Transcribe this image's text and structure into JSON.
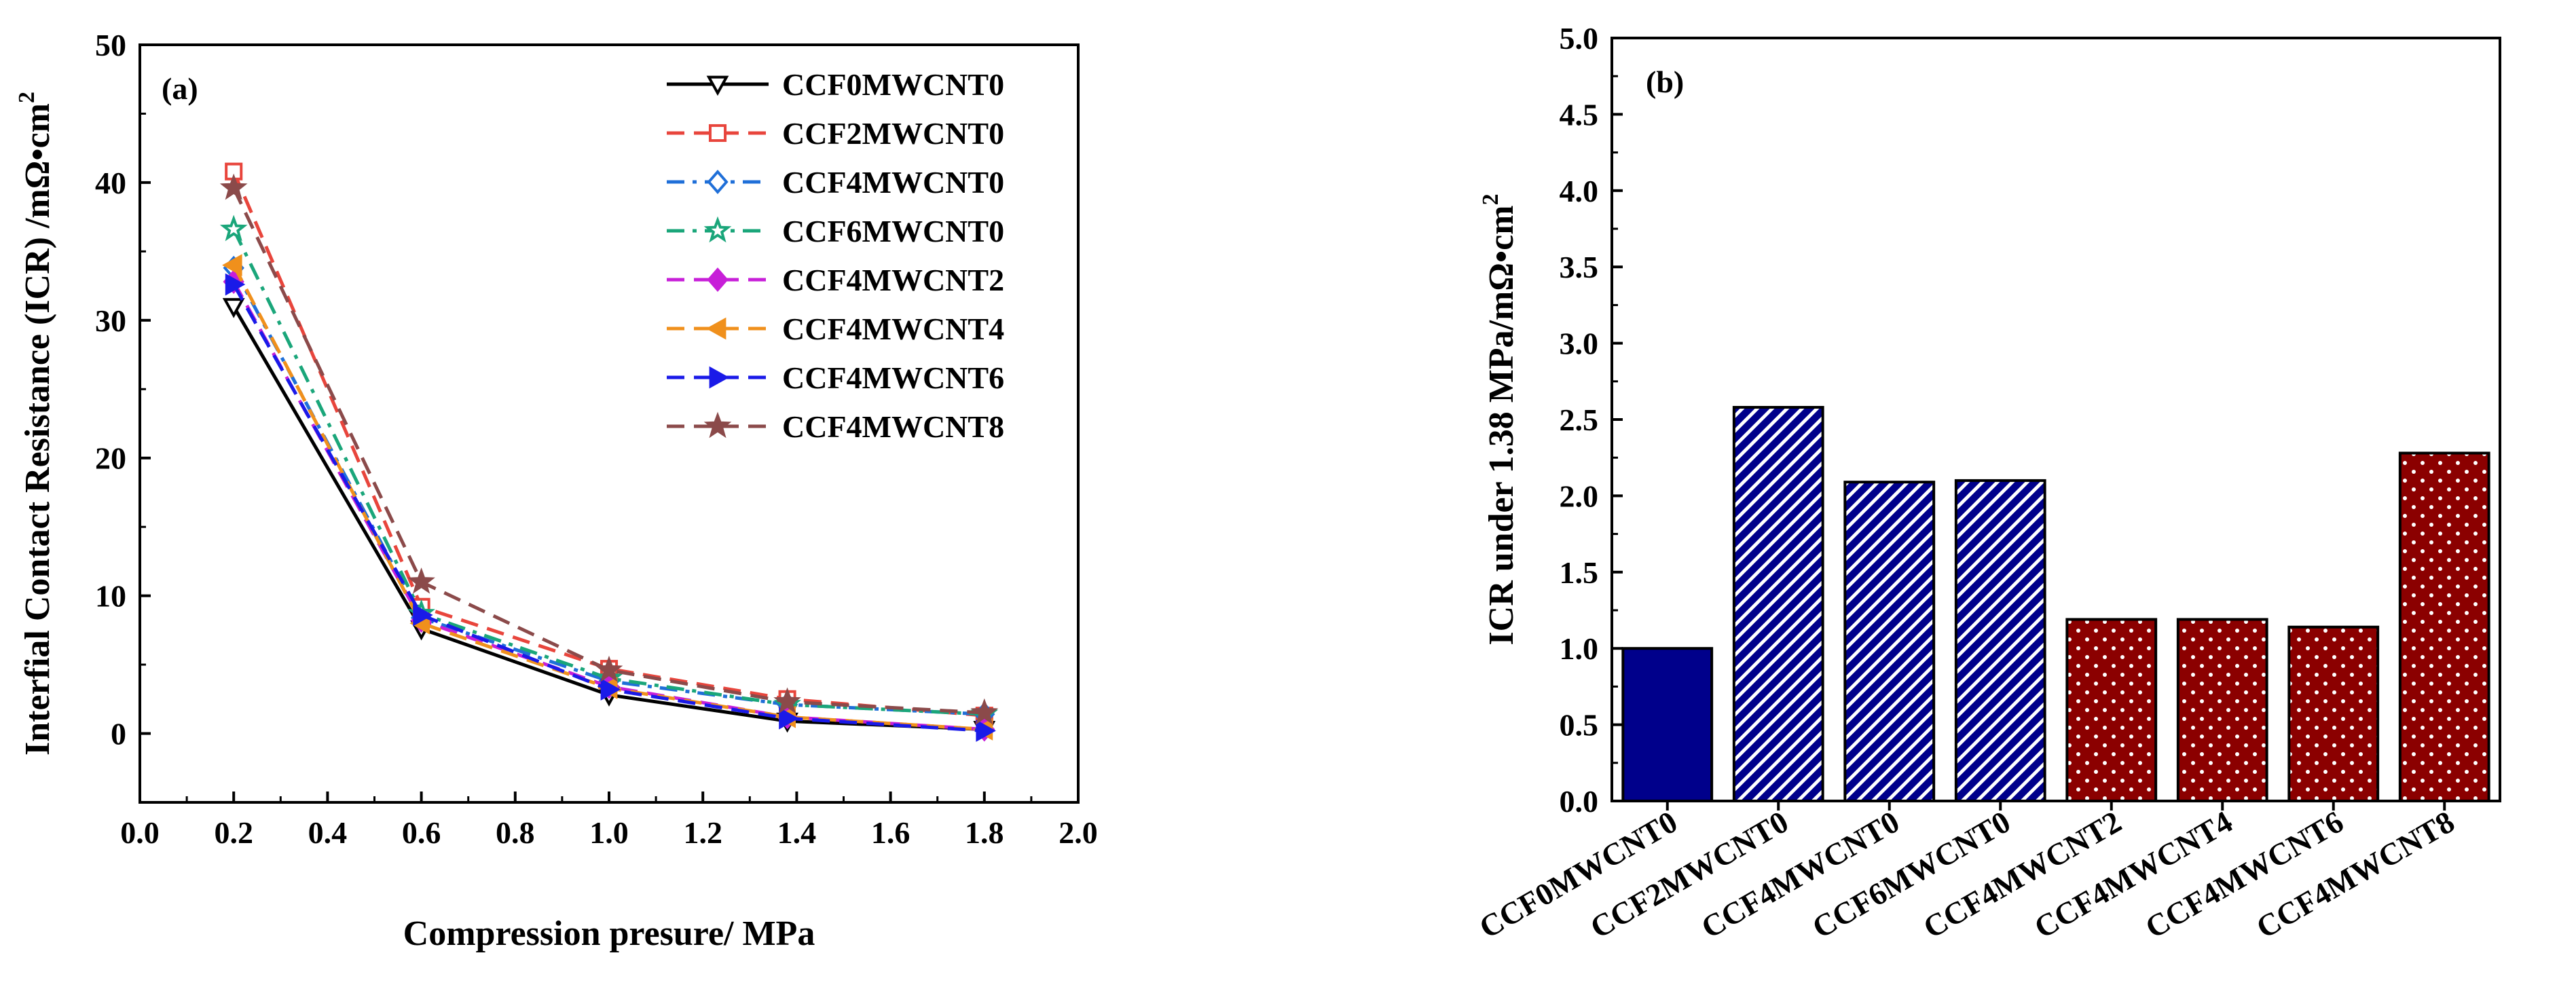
{
  "chart_data": [
    {
      "type": "line",
      "panel_label": "(a)",
      "title": "",
      "xlabel": "Compression presure/ MPa",
      "ylabel": "Interfial Contact Resistance (ICR) /mΩ•cm",
      "ylabel_sup": "2",
      "xlim": [
        0.0,
        2.0
      ],
      "ylim": [
        -5,
        50
      ],
      "xticks": [
        "0.0",
        "0.2",
        "0.4",
        "0.6",
        "0.8",
        "1.0",
        "1.2",
        "1.4",
        "1.6",
        "1.8",
        "2.0"
      ],
      "yticks": [
        "0",
        "10",
        "20",
        "30",
        "40",
        "50"
      ],
      "x": [
        0.2,
        0.6,
        1.0,
        1.38,
        1.8
      ],
      "series": [
        {
          "name": "CCF0MWCNT0",
          "values": [
            31.0,
            7.6,
            2.8,
            0.9,
            0.3
          ],
          "color": "#000000",
          "dash": "solid",
          "marker": "triangle-down",
          "filled": false
        },
        {
          "name": "CCF2MWCNT0",
          "values": [
            40.8,
            9.2,
            4.7,
            2.5,
            1.3
          ],
          "color": "#e8453c",
          "dash": "dash",
          "marker": "square",
          "filled": false
        },
        {
          "name": "CCF4MWCNT0",
          "values": [
            33.8,
            8.4,
            3.8,
            2.1,
            1.4
          ],
          "color": "#1f6fd8",
          "dash": "dashdot",
          "marker": "diamond",
          "filled": false
        },
        {
          "name": "CCF6MWCNT0",
          "values": [
            36.6,
            8.7,
            4.0,
            2.1,
            1.4
          ],
          "color": "#1aa67a",
          "dash": "dashdot",
          "marker": "star",
          "filled": false
        },
        {
          "name": "CCF4MWCNT2",
          "values": [
            32.8,
            8.2,
            3.4,
            1.2,
            0.3
          ],
          "color": "#c71fd8",
          "dash": "dash",
          "marker": "diamond",
          "filled": true
        },
        {
          "name": "CCF4MWCNT4",
          "values": [
            34.0,
            8.0,
            3.3,
            1.2,
            0.3
          ],
          "color": "#f0901c",
          "dash": "dash",
          "marker": "triangle-left",
          "filled": true
        },
        {
          "name": "CCF4MWCNT6",
          "values": [
            32.6,
            8.6,
            3.2,
            1.1,
            0.2
          ],
          "color": "#1a1ae8",
          "dash": "dash",
          "marker": "triangle-right",
          "filled": true
        },
        {
          "name": "CCF4MWCNT8",
          "values": [
            39.6,
            11.0,
            4.6,
            2.3,
            1.5
          ],
          "color": "#8b4a4a",
          "dash": "dash",
          "marker": "star",
          "filled": true
        }
      ]
    },
    {
      "type": "bar",
      "panel_label": "(b)",
      "title": "",
      "xlabel": "",
      "ylabel": "ICR under 1.38 MPa/mΩ•cm",
      "ylabel_sup": "2",
      "ylim": [
        0.0,
        5.0
      ],
      "yticks": [
        "0.0",
        "0.5",
        "1.0",
        "1.5",
        "2.0",
        "2.5",
        "3.0",
        "3.5",
        "4.0",
        "4.5",
        "5.0"
      ],
      "categories": [
        "CCF0MWCNT0",
        "CCF2MWCNT0",
        "CCF4MWCNT0",
        "CCF6MWCNT0",
        "CCF4MWCNT2",
        "CCF4MWCNT4",
        "CCF4MWCNT6",
        "CCF4MWCNT8"
      ],
      "values": [
        1.0,
        2.58,
        2.09,
        2.1,
        1.19,
        1.19,
        1.14,
        2.28
      ],
      "fills": [
        "solid-navy",
        "hatch-navy",
        "hatch-navy",
        "hatch-navy",
        "dots-red",
        "dots-red",
        "dots-red",
        "dots-red"
      ],
      "colors": {
        "navy": "#00008b",
        "red": "#8b0000"
      }
    }
  ]
}
